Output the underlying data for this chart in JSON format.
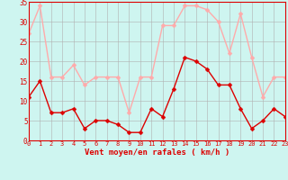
{
  "hours": [
    0,
    1,
    2,
    3,
    4,
    5,
    6,
    7,
    8,
    9,
    10,
    11,
    12,
    13,
    14,
    15,
    16,
    17,
    18,
    19,
    20,
    21,
    22,
    23
  ],
  "mean_wind": [
    11,
    15,
    7,
    7,
    8,
    3,
    5,
    5,
    4,
    2,
    2,
    8,
    6,
    13,
    21,
    20,
    18,
    14,
    14,
    8,
    3,
    5,
    8,
    6
  ],
  "gust_wind": [
    27,
    34,
    16,
    16,
    19,
    14,
    16,
    16,
    16,
    7,
    16,
    16,
    29,
    29,
    34,
    34,
    33,
    30,
    22,
    32,
    21,
    11,
    16,
    16
  ],
  "mean_color": "#dd0000",
  "gust_color": "#ffaaaa",
  "bg_color": "#cef5f0",
  "grid_color": "#b0b0b0",
  "xlabel": "Vent moyen/en rafales ( km/h )",
  "xlabel_color": "#dd0000",
  "ylim": [
    0,
    35
  ],
  "yticks": [
    0,
    5,
    10,
    15,
    20,
    25,
    30,
    35
  ],
  "markersize": 2.5,
  "linewidth": 1.0
}
